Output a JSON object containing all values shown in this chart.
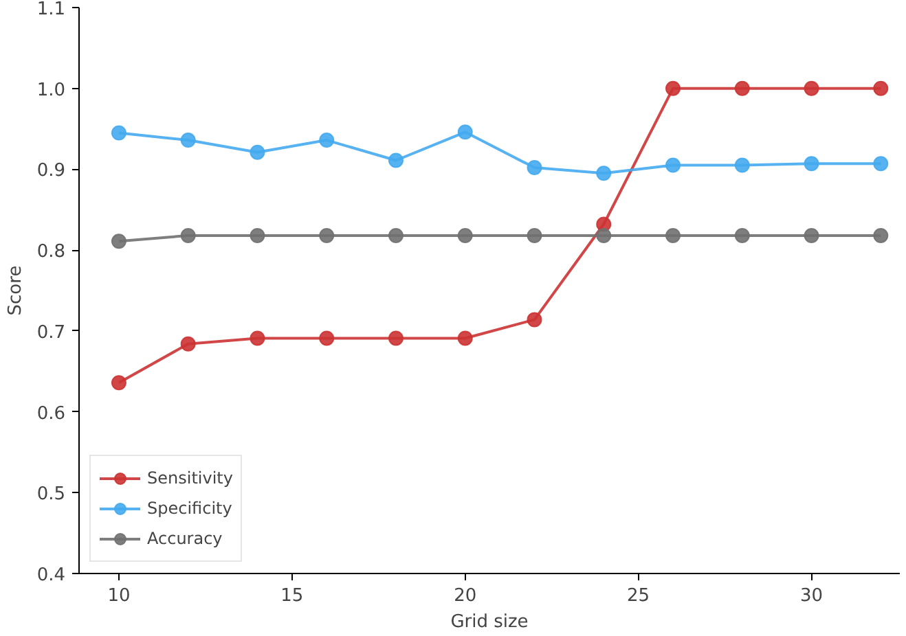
{
  "chart_data": {
    "type": "line",
    "xlabel": "Grid size",
    "ylabel": "Score",
    "x": [
      10,
      12,
      14,
      16,
      18,
      20,
      22,
      24,
      26,
      28,
      30,
      32
    ],
    "series": [
      {
        "name": "Sensitivity",
        "color": "#cc3333",
        "values": [
          0.636,
          0.684,
          0.691,
          0.691,
          0.691,
          0.691,
          0.714,
          0.832,
          1.0,
          1.0,
          1.0,
          1.0
        ]
      },
      {
        "name": "Specificity",
        "color": "#44aaee",
        "values": [
          0.945,
          0.936,
          0.921,
          0.936,
          0.911,
          0.946,
          0.902,
          0.895,
          0.905,
          0.905,
          0.907,
          0.907
        ]
      },
      {
        "name": "Accuracy",
        "color": "#707070",
        "values": [
          0.811,
          0.818,
          0.818,
          0.818,
          0.818,
          0.818,
          0.818,
          0.818,
          0.818,
          0.818,
          0.818,
          0.818
        ]
      }
    ],
    "xlim": [
      8.85,
      32.55
    ],
    "ylim": [
      0.4,
      1.1
    ],
    "xticks": [
      10,
      15,
      20,
      25,
      30
    ],
    "yticks": [
      0.4,
      0.5,
      0.6,
      0.7,
      0.8,
      0.9,
      {
        "value": 1,
        "label": "1.0"
      },
      1.1
    ],
    "grid": false,
    "legend": "bottom left",
    "marker": "circle",
    "line_style": "solid"
  }
}
